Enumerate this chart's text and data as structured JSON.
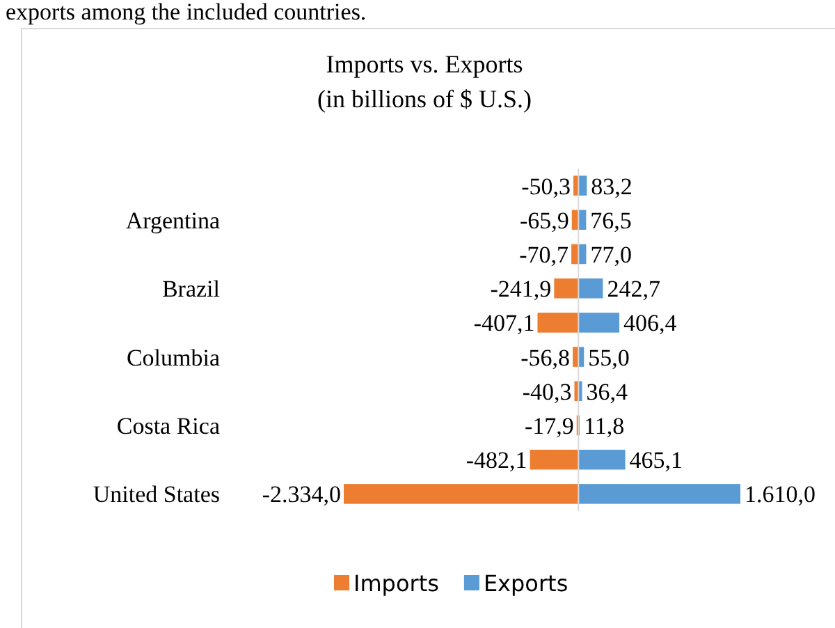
{
  "chart_data": {
    "type": "bar",
    "orientation": "horizontal",
    "stacked": true,
    "title": "Imports vs. Exports",
    "subtitle": "(in billions of $ U.S.)",
    "annotations": [
      "exports among the included countries."
    ],
    "categories": [
      null,
      "Argentina",
      null,
      "Brazil",
      null,
      "Columbia",
      null,
      "Costa Rica",
      null,
      "United States"
    ],
    "series": [
      {
        "name": "Imports",
        "color": "#ed7d31",
        "values": [
          -50.3,
          -65.9,
          -70.7,
          -241.9,
          -407.1,
          -56.8,
          -40.3,
          -17.9,
          -482.1,
          -2334.0
        ],
        "value_labels": [
          "-50,3",
          "-65,9",
          "-70,7",
          "-241,9",
          "-407,1",
          "-56,8",
          "-40,3",
          "-17,9",
          "-482,1",
          "-2.334,0"
        ]
      },
      {
        "name": "Exports",
        "color": "#5b9bd5",
        "values": [
          83.2,
          76.5,
          77.0,
          242.7,
          406.4,
          55.0,
          36.4,
          11.8,
          465.1,
          1610.0
        ],
        "value_labels": [
          "83,2",
          "76,5",
          "77,0",
          "242,7",
          "406,4",
          "55,0",
          "36,4",
          "11,8",
          "465,1",
          "1.610,0"
        ]
      }
    ],
    "legend": "bottom"
  }
}
